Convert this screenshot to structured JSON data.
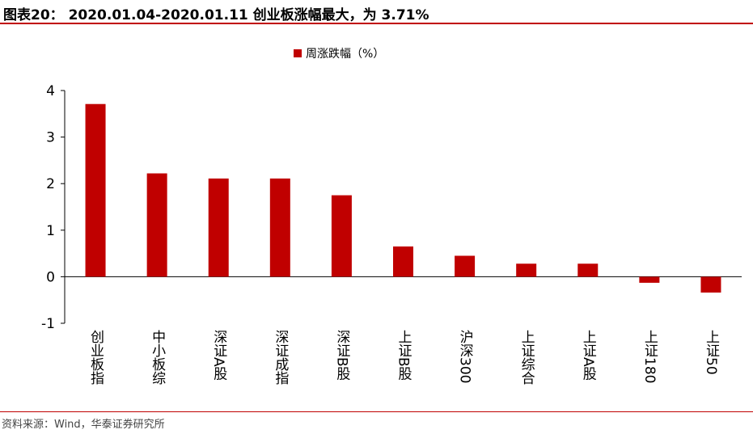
{
  "header": {
    "title": "图表20：  2020.01.04-2020.01.11 创业板涨幅最大，为 3.71%"
  },
  "footer": {
    "source": "资料来源：Wind，华泰证券研究所"
  },
  "colors": {
    "accent": "#c00000",
    "bar": "#c00000"
  },
  "chart_data": {
    "type": "bar",
    "title": "",
    "xlabel": "",
    "ylabel": "",
    "categories": [
      "创业板指",
      "中小板综",
      "深证A股",
      "深证成指",
      "深证B股",
      "上证B股",
      "沪深300",
      "上证综合",
      "上证A股",
      "上证180",
      "上证50"
    ],
    "series": [
      {
        "name": "周涨跌幅（%）",
        "values": [
          3.71,
          2.22,
          2.11,
          2.11,
          1.75,
          0.65,
          0.45,
          0.28,
          0.28,
          -0.13,
          -0.34
        ]
      }
    ],
    "ylim": [
      -1,
      4
    ],
    "yticks": [
      -1,
      0,
      1,
      2,
      3,
      4
    ],
    "legend_position": "top-center",
    "grid": false
  }
}
